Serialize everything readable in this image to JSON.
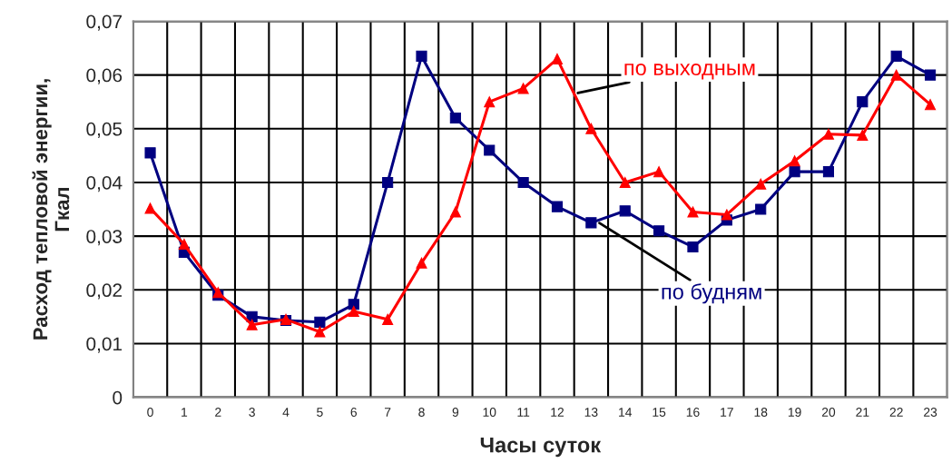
{
  "chart_data": {
    "type": "line",
    "xlabel": "Часы суток",
    "ylabel": "Расход тепловой энергии,\nГкал",
    "categories": [
      "0",
      "1",
      "2",
      "3",
      "4",
      "5",
      "6",
      "7",
      "8",
      "9",
      "10",
      "11",
      "12",
      "13",
      "14",
      "15",
      "16",
      "17",
      "18",
      "19",
      "20",
      "21",
      "22",
      "23"
    ],
    "series": [
      {
        "name": "по будням",
        "color": "#000080",
        "marker": "square",
        "values": [
          0.0455,
          0.027,
          0.019,
          0.015,
          0.0143,
          0.014,
          0.0173,
          0.04,
          0.0635,
          0.052,
          0.046,
          0.04,
          0.0355,
          0.0325,
          0.0347,
          0.031,
          0.028,
          0.033,
          0.035,
          0.042,
          0.042,
          0.055,
          0.0635,
          0.06
        ]
      },
      {
        "name": "по выходным",
        "color": "#ff0000",
        "marker": "triangle",
        "values": [
          0.0352,
          0.0285,
          0.0195,
          0.0135,
          0.0145,
          0.0122,
          0.016,
          0.0145,
          0.025,
          0.0345,
          0.055,
          0.0575,
          0.063,
          0.05,
          0.04,
          0.042,
          0.0345,
          0.034,
          0.0397,
          0.044,
          0.049,
          0.0488,
          0.06,
          0.0545
        ]
      }
    ],
    "ylim": [
      0,
      0.07
    ],
    "yticks": [
      {
        "value": 0,
        "label": "0"
      },
      {
        "value": 0.01,
        "label": "0,01"
      },
      {
        "value": 0.02,
        "label": "0,02"
      },
      {
        "value": 0.03,
        "label": "0,03"
      },
      {
        "value": 0.04,
        "label": "0,04"
      },
      {
        "value": 0.05,
        "label": "0,05"
      },
      {
        "value": 0.06,
        "label": "0,06"
      },
      {
        "value": 0.07,
        "label": "0,07"
      }
    ],
    "grid": true,
    "legend": false,
    "line_style": "solid"
  }
}
